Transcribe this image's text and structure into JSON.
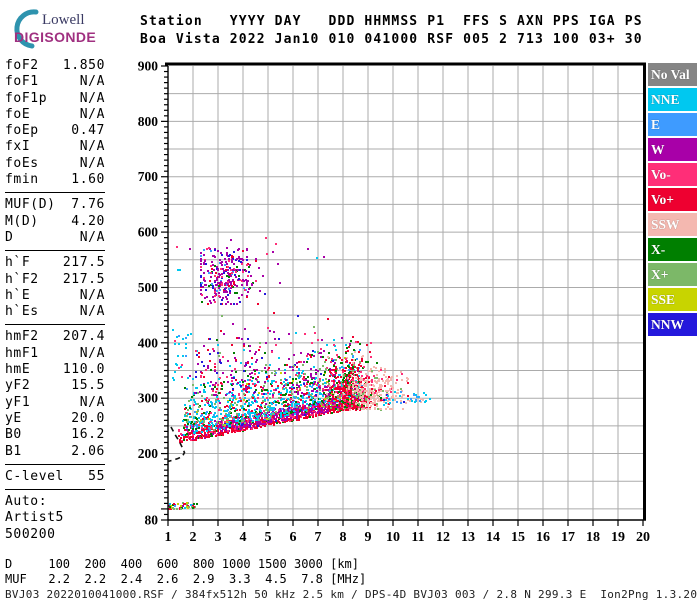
{
  "logo": {
    "line1": "Lowell",
    "line2": "DIGISONDE",
    "arc_color": "#2E93AE",
    "line1_color": "#3A3A63",
    "line2_color": "#A03080"
  },
  "header": {
    "line1": "Station   YYYY DAY   DDD HHMMSS P1  FFS S AXN PPS IGA PS",
    "line2": "Boa Vista 2022 Jan10 010 041000 RSF 005 2 713 100 03+ 30"
  },
  "params": {
    "sections": [
      {
        "rows": [
          {
            "label": "foF2",
            "value": "1.850"
          },
          {
            "label": "foF1",
            "value": "N/A"
          },
          {
            "label": "foF1p",
            "value": "N/A"
          },
          {
            "label": "foE",
            "value": "N/A"
          },
          {
            "label": "foEp",
            "value": "0.47"
          },
          {
            "label": "fxI",
            "value": "N/A"
          },
          {
            "label": "foEs",
            "value": "N/A"
          },
          {
            "label": "fmin",
            "value": "1.60"
          }
        ]
      },
      {
        "rows": [
          {
            "label": "MUF(D)",
            "value": "7.76"
          },
          {
            "label": "M(D)",
            "value": "4.20"
          },
          {
            "label": "D",
            "value": "N/A"
          }
        ]
      },
      {
        "rows": [
          {
            "label": "h`F",
            "value": "217.5"
          },
          {
            "label": "h`F2",
            "value": "217.5"
          },
          {
            "label": "h`E",
            "value": "N/A"
          },
          {
            "label": "h`Es",
            "value": "N/A"
          }
        ]
      },
      {
        "rows": [
          {
            "label": "hmF2",
            "value": "207.4"
          },
          {
            "label": "hmF1",
            "value": "N/A"
          },
          {
            "label": "hmE",
            "value": "110.0"
          },
          {
            "label": "yF2",
            "value": "15.5"
          },
          {
            "label": "yF1",
            "value": "N/A"
          },
          {
            "label": "yE",
            "value": "20.0"
          },
          {
            "label": "B0",
            "value": "16.2"
          },
          {
            "label": "B1",
            "value": "2.06"
          }
        ]
      },
      {
        "rows": [
          {
            "label": "C-level",
            "value": "55"
          }
        ]
      }
    ],
    "footer": [
      "Auto:",
      "Artist5",
      "500200"
    ]
  },
  "legend": {
    "items": [
      {
        "label": "No Val",
        "color": "#858585"
      },
      {
        "label": "NNE",
        "color": "#00C8F0"
      },
      {
        "label": "E",
        "color": "#3E9BFF"
      },
      {
        "label": "W",
        "color": "#A800A8"
      },
      {
        "label": "Vo-",
        "color": "#FF2E78"
      },
      {
        "label": "Vo+",
        "color": "#EE0030"
      },
      {
        "label": "SSW",
        "color": "#F4B8B0"
      },
      {
        "label": "X-",
        "color": "#007F00"
      },
      {
        "label": "X+",
        "color": "#7CB868"
      },
      {
        "label": "SSE",
        "color": "#C8D400"
      },
      {
        "label": "NNW",
        "color": "#2418DC"
      }
    ]
  },
  "bottom": {
    "d_row": "D     100  200  400  600  800 1000 1500 3000 [km]",
    "muf_row": "MUF   2.2  2.2  2.4  2.6  2.9  3.3  4.5  7.8 [MHz]",
    "status": "BVJ03_2022010041000.RSF / 384fx512h 50 kHz 2.5 km / DPS-4D BVJ03 003 / 2.8 N 299.3 E  Ion2Png 1.3.20"
  },
  "chart_data": {
    "type": "scatter",
    "title": "Boa Vista ionogram 2022 Jan10 010 041000 UT",
    "xlabel": "[MHz]",
    "ylabel": "[km]",
    "xlim": [
      1,
      20
    ],
    "ylim": [
      80,
      900
    ],
    "x_ticks": [
      1,
      2,
      3,
      4,
      5,
      6,
      7,
      8,
      9,
      10,
      11,
      12,
      13,
      14,
      15,
      16,
      17,
      18,
      19,
      20
    ],
    "y_tick_labels": [
      900,
      800,
      700,
      600,
      500,
      400,
      300,
      200,
      80
    ],
    "y_minor_tick_km": 10,
    "grid": {
      "x_step_mhz": 1,
      "y_step_km": 50,
      "color": "#ABABAB"
    },
    "legend_position": "right",
    "colors": {
      "NoVal": "#858585",
      "NNE": "#00C8F0",
      "E": "#3E9BFF",
      "W": "#A800A8",
      "Vo-": "#FF2E78",
      "Vo+": "#EE0030",
      "SSW": "#F4B8B0",
      "X-": "#007F00",
      "X+": "#7CB868",
      "SSE": "#C8D400",
      "NNW": "#2418DC"
    },
    "dmuf": {
      "D_km": [
        100,
        200,
        400,
        600,
        800,
        1000,
        1500,
        3000
      ],
      "MUF_MHz": [
        2.2,
        2.2,
        2.4,
        2.6,
        2.9,
        3.3,
        4.5,
        7.8
      ]
    },
    "artist_trace": {
      "style": "dashed-black",
      "points_fh": [
        [
          1.12,
          248
        ],
        [
          1.3,
          233
        ],
        [
          1.45,
          222
        ],
        [
          1.58,
          210
        ],
        [
          1.66,
          202
        ],
        [
          1.58,
          195
        ],
        [
          1.4,
          191
        ],
        [
          1.18,
          188
        ],
        [
          1.02,
          186
        ]
      ]
    },
    "clusters": [
      {
        "name": "e-region-echoes",
        "n": 50,
        "f": {
          "type": "uniform",
          "min": 1.05,
          "max": 2.15
        },
        "h": {
          "type": "uniform",
          "min": 100,
          "max": 110
        },
        "colors": {
          "X+": 0.22,
          "Vo+": 0.2,
          "X-": 0.18,
          "E": 0.1,
          "SSE": 0.12,
          "NNE": 0.08,
          "W": 0.1
        }
      },
      {
        "name": "f-trace-leading-edge",
        "n": 650,
        "f": {
          "type": "uniform",
          "min": 1.45,
          "max": 8.6
        },
        "h_base": {
          "a": 205,
          "b": 9
        },
        "h": {
          "type": "halfgauss",
          "offset": 0,
          "spread": 13
        },
        "colors": {
          "Vo+": 0.72,
          "Vo-": 0.12,
          "W": 0.1,
          "X-": 0.06
        }
      },
      {
        "name": "f-trace-west-band",
        "n": 450,
        "f": {
          "type": "uniform",
          "min": 3.0,
          "max": 8.6
        },
        "h_base": {
          "a": 205,
          "b": 9
        },
        "h": {
          "type": "uniform",
          "min": 4,
          "max": 26
        },
        "colors": {
          "W": 0.78,
          "NNW": 0.1,
          "Vo-": 0.12
        }
      },
      {
        "name": "spread-f-speckle",
        "n": 1100,
        "f": {
          "type": "uniform",
          "min": 1.6,
          "max": 8.8
        },
        "h_base": {
          "a": 205,
          "b": 9
        },
        "h": {
          "type": "halfgauss",
          "offset": 12,
          "spread": 38
        },
        "colors": {
          "NNE": 0.34,
          "X+": 0.14,
          "X-": 0.12,
          "Vo-": 0.12,
          "Vo+": 0.1,
          "E": 0.09,
          "W": 0.06,
          "SSE": 0.03
        }
      },
      {
        "name": "upper-spread-cloud",
        "n": 330,
        "f": {
          "type": "uniform",
          "min": 2.0,
          "max": 8.0
        },
        "h": {
          "type": "halfgauss",
          "offset": 305,
          "spread": 55
        },
        "colors": {
          "W": 0.42,
          "Vo-": 0.15,
          "Vo+": 0.1,
          "X-": 0.1,
          "NNW": 0.09,
          "NNE": 0.08,
          "X+": 0.06
        }
      },
      {
        "name": "second-hop-cluster",
        "n": 300,
        "f": {
          "type": "gauss",
          "mean": 3.3,
          "sd": 0.6,
          "min": 2.3,
          "max": 4.8
        },
        "h": {
          "type": "gauss",
          "mean": 520,
          "sd": 25,
          "min": 470,
          "max": 570
        },
        "colors": {
          "W": 0.52,
          "Vo-": 0.12,
          "Vo+": 0.1,
          "NNW": 0.12,
          "X-": 0.06,
          "E": 0.08
        }
      },
      {
        "name": "rising-tail",
        "n": 520,
        "f": {
          "type": "gauss",
          "mean": 8.25,
          "sd": 0.45,
          "min": 7.3,
          "max": 9.5
        },
        "h": {
          "type": "halfgauss",
          "offset": 278,
          "spread": 50
        },
        "colors": {
          "Vo+": 0.48,
          "X-": 0.17,
          "Vo-": 0.12,
          "SSW": 0.12,
          "X+": 0.06,
          "W": 0.05
        }
      },
      {
        "name": "ssw-salmon-cluster",
        "n": 270,
        "f": {
          "type": "gauss",
          "mean": 9.35,
          "sd": 0.55,
          "min": 8.4,
          "max": 10.6
        },
        "h": {
          "type": "gauss",
          "mean": 315,
          "sd": 22,
          "min": 280,
          "max": 375
        },
        "colors": {
          "SSW": 0.8,
          "Vo-": 0.07,
          "Vo+": 0.06,
          "X+": 0.07
        }
      },
      {
        "name": "right-end-cap",
        "n": 40,
        "f": {
          "type": "uniform",
          "min": 9.6,
          "max": 11.5
        },
        "h": {
          "type": "uniform",
          "min": 288,
          "max": 312
        },
        "colors": {
          "NNE": 0.45,
          "E": 0.2,
          "NNW": 0.15,
          "SSW": 0.2
        }
      },
      {
        "name": "left-sparse-dots",
        "n": 28,
        "f": {
          "type": "uniform",
          "min": 1.15,
          "max": 1.95
        },
        "h": {
          "type": "uniform",
          "min": 330,
          "max": 425
        },
        "colors": {
          "NNE": 0.5,
          "E": 0.25,
          "Vo-": 0.15,
          "W": 0.1
        }
      },
      {
        "name": "high-noise-dots",
        "n": 20,
        "f": {
          "type": "uniform",
          "min": 1.3,
          "max": 7.5
        },
        "h": {
          "type": "uniform",
          "min": 520,
          "max": 590
        },
        "colors": {
          "W": 0.4,
          "Vo-": 0.3,
          "NNW": 0.15,
          "NNE": 0.15
        }
      }
    ]
  }
}
